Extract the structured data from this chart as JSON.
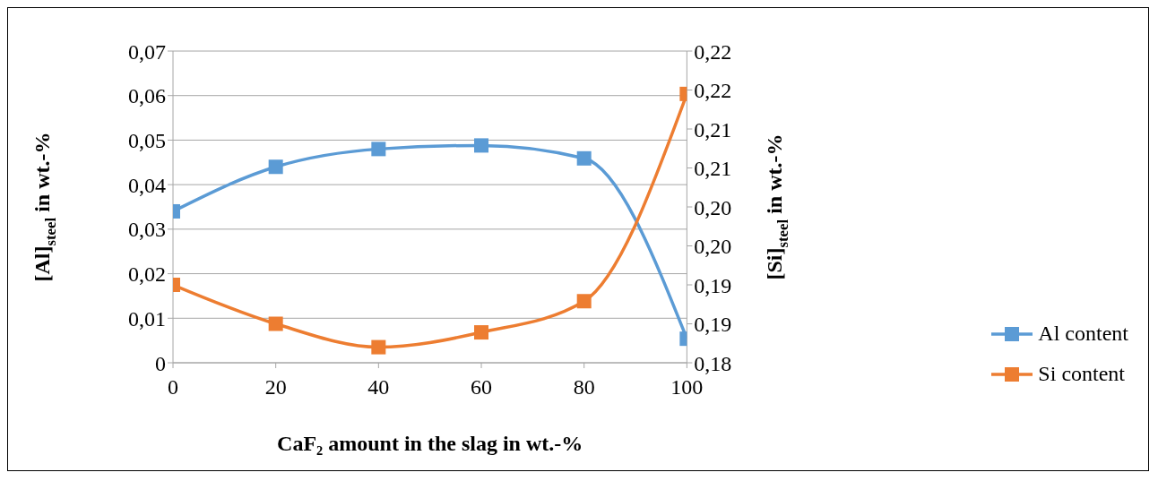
{
  "chart_data": {
    "type": "line",
    "xlabel": "CaF₂ amount in the slag in wt.-%",
    "ylabel": "[Al]$_{steel}$ in wt.-%",
    "y2label": "[Si]$_{steel}$ in wt.-%",
    "x": [
      0,
      20,
      40,
      60,
      80,
      100
    ],
    "series": [
      {
        "name": "Al content",
        "color": "#5b9bd5",
        "values": [
          0.034,
          0.044,
          0.048,
          0.0488,
          0.0459,
          0.0054
        ]
      },
      {
        "name": "Si content",
        "color": "#ed7d31",
        "axis": "y2",
        "values": [
          0.19,
          0.185,
          0.182,
          0.1839,
          0.1879,
          0.2145
        ]
      }
    ],
    "xlim": [
      0,
      100
    ],
    "xticks": [
      0,
      20,
      40,
      60,
      80,
      100
    ],
    "ylim": [
      0,
      0.07
    ],
    "yticks": [
      0,
      {
        "value": 0.01,
        "label": "0,01"
      },
      {
        "value": 0.02,
        "label": "0,02"
      },
      {
        "value": 0.03,
        "label": "0,03"
      },
      {
        "value": 0.04,
        "label": "0,04"
      },
      {
        "value": 0.05,
        "label": "0,05"
      },
      {
        "value": 0.06,
        "label": "0,06"
      },
      {
        "value": 0.07,
        "label": "0,07"
      }
    ],
    "y2lim": [
      0.18,
      0.22
    ],
    "y2ticks": [
      {
        "value": 0.18,
        "label": "0,18"
      },
      {
        "value": 0.185,
        "label": "0,19"
      },
      {
        "value": 0.19,
        "label": "0,19"
      },
      {
        "value": 0.195,
        "label": "0,20"
      },
      {
        "value": 0.2,
        "label": "0,20"
      },
      {
        "value": 0.205,
        "label": "0,21"
      },
      {
        "value": 0.21,
        "label": "0,21"
      },
      {
        "value": 0.215,
        "label": "0,22"
      },
      {
        "value": 0.22,
        "label": "0,22"
      }
    ],
    "grid": "y",
    "legend": "right",
    "marker": "square",
    "line_style": "solid"
  }
}
